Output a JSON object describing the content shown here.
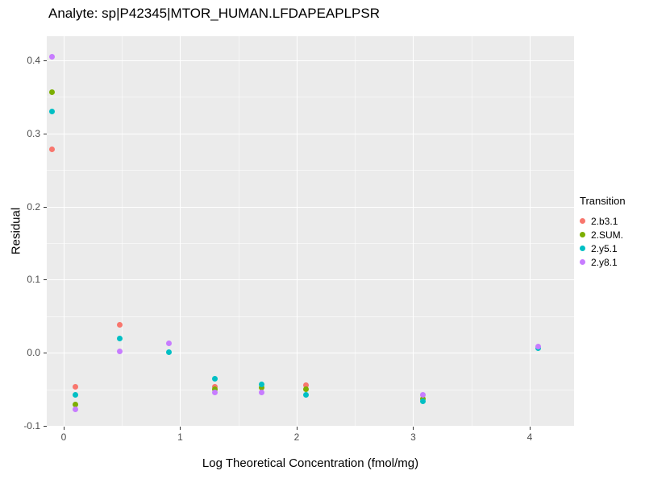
{
  "chart_data": {
    "type": "scatter",
    "title": "Analyte: sp|P42345|MTOR_HUMAN.LFDAPEAPLPSR",
    "xlabel": "Log Theoretical Concentration (fmol/mg)",
    "ylabel": "Residual",
    "legend_title": "Transition",
    "legend_position": "right",
    "panel_background": "#EBEBEB",
    "grid_color": "#FFFFFF",
    "tick_label_color": "#4D4D4D",
    "xlim": [
      -0.145,
      4.381
    ],
    "ylim": [
      -0.101,
      0.433
    ],
    "x_ticks": [
      {
        "v": 0,
        "label": "0"
      },
      {
        "v": 1,
        "label": "1"
      },
      {
        "v": 2,
        "label": "2"
      },
      {
        "v": 3,
        "label": "3"
      },
      {
        "v": 4,
        "label": "4"
      }
    ],
    "y_ticks": [
      {
        "v": -0.1,
        "label": "-0.1"
      },
      {
        "v": 0.0,
        "label": "0.0"
      },
      {
        "v": 0.1,
        "label": "0.1"
      },
      {
        "v": 0.2,
        "label": "0.2"
      },
      {
        "v": 0.3,
        "label": "0.3"
      },
      {
        "v": 0.4,
        "label": "0.4"
      }
    ],
    "x_minor": [
      0.5,
      1.5,
      2.5,
      3.5
    ],
    "y_minor": [
      -0.05,
      0.05,
      0.15,
      0.25,
      0.35
    ],
    "series": [
      {
        "name": "2.b3.1",
        "color": "#F8766D",
        "points": [
          [
            -0.1,
            0.278
          ],
          [
            0.1,
            -0.047
          ],
          [
            0.48,
            0.038
          ],
          [
            1.3,
            -0.047
          ],
          [
            2.08,
            -0.044
          ]
        ]
      },
      {
        "name": "2.SUM.",
        "color": "#7CAE00",
        "points": [
          [
            -0.1,
            0.357
          ],
          [
            0.1,
            -0.071
          ],
          [
            1.3,
            -0.05
          ],
          [
            1.7,
            -0.048
          ],
          [
            2.08,
            -0.05
          ],
          [
            3.08,
            -0.063
          ]
        ]
      },
      {
        "name": "2.y5.1",
        "color": "#00BFC4",
        "points": [
          [
            -0.1,
            0.33
          ],
          [
            0.1,
            -0.058
          ],
          [
            0.48,
            0.02
          ],
          [
            0.9,
            0.001
          ],
          [
            1.3,
            -0.035
          ],
          [
            1.7,
            -0.043
          ],
          [
            2.08,
            -0.058
          ],
          [
            3.08,
            -0.066
          ],
          [
            4.07,
            0.006
          ]
        ]
      },
      {
        "name": "2.y8.1",
        "color": "#C77CFF",
        "points": [
          [
            -0.1,
            0.405
          ],
          [
            0.1,
            -0.077
          ],
          [
            0.48,
            0.002
          ],
          [
            0.9,
            0.013
          ],
          [
            1.3,
            -0.054
          ],
          [
            1.7,
            -0.054
          ],
          [
            3.08,
            -0.057
          ],
          [
            4.07,
            0.009
          ]
        ]
      }
    ]
  }
}
